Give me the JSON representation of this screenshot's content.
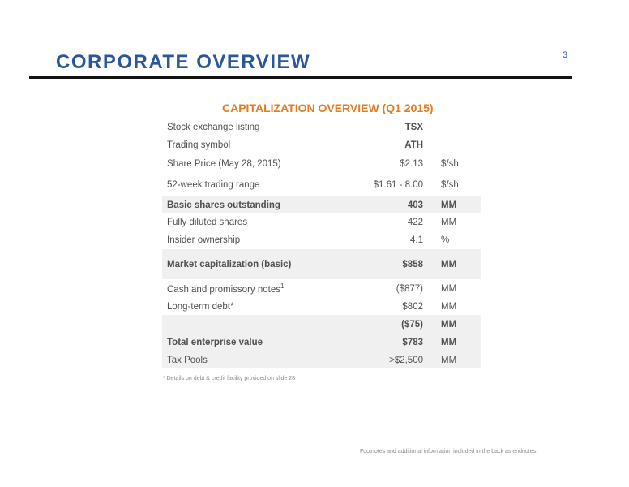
{
  "header": {
    "title": "CORPORATE OVERVIEW",
    "page_number": "3"
  },
  "table": {
    "title": "CAPITALIZATION OVERVIEW (Q1 2015)",
    "rows": [
      {
        "label": "Stock exchange listing",
        "value": "TSX",
        "unit": ""
      },
      {
        "label": "Trading symbol",
        "value": "ATH",
        "unit": ""
      },
      {
        "label": "Share Price (May 28, 2015)",
        "value": "$2.13",
        "unit": "$/sh"
      },
      {
        "label": "52-week trading range",
        "value": "$1.61 - 8.00",
        "unit": "$/sh"
      },
      {
        "label": "Basic shares outstanding",
        "value": "403",
        "unit": "MM"
      },
      {
        "label": "Fully diluted shares",
        "value": "422",
        "unit": "MM"
      },
      {
        "label": "Insider ownership",
        "value": "4.1",
        "unit": "%"
      },
      {
        "label": "Market capitalization (basic)",
        "value": "$858",
        "unit": "MM"
      },
      {
        "label": "Cash and promissory notes",
        "sup": "1",
        "value": "($877)",
        "unit": "MM"
      },
      {
        "label": "Long-term debt*",
        "value": "$802",
        "unit": "MM"
      },
      {
        "label": "",
        "value": "($75)",
        "unit": "MM"
      },
      {
        "label": "Total enterprise value",
        "value": "$783",
        "unit": "MM"
      },
      {
        "label": "Tax Pools",
        "value": ">$2,500",
        "unit": "MM"
      }
    ]
  },
  "note": "* Details on debt & credit facility provided on slide 28",
  "footer": "Footnotes and additional information included in the back as endnotes."
}
